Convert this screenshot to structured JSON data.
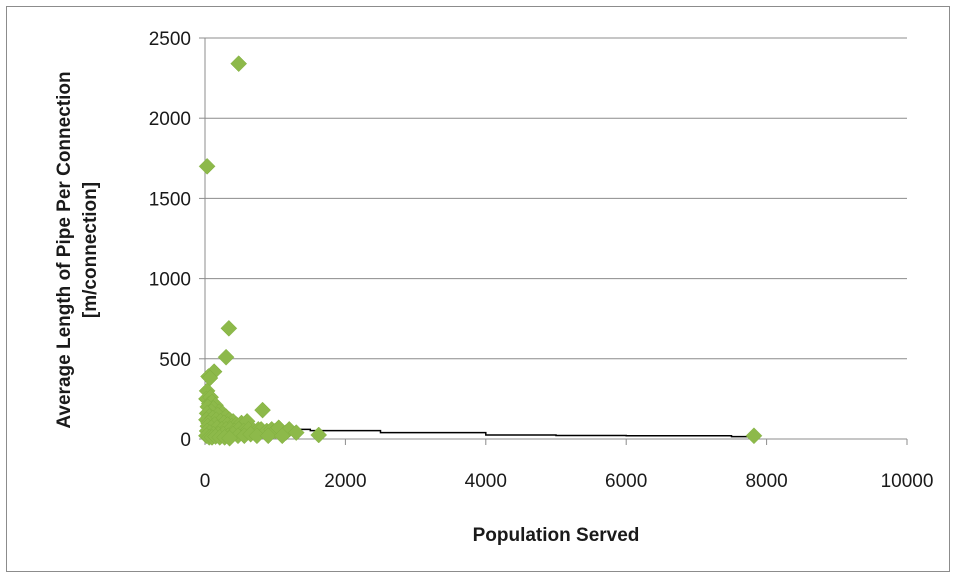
{
  "chart_data": {
    "type": "scatter",
    "title": "",
    "xlabel": "Population Served",
    "ylabel_lines": [
      "Average Length of Pipe Per Connection",
      "[m/connection]"
    ],
    "xlim": [
      0,
      10000
    ],
    "ylim": [
      0,
      2500
    ],
    "x_ticks": [
      0,
      2000,
      4000,
      6000,
      8000,
      10000
    ],
    "y_ticks": [
      0,
      500,
      1000,
      1500,
      2000,
      2500
    ],
    "grid": "horizontal",
    "legend": "none",
    "marker_color": "#8db94a",
    "trend_color": "#000000",
    "series": [
      {
        "points": [
          [
            480,
            2340
          ],
          [
            30,
            1700
          ],
          [
            340,
            690
          ],
          [
            300,
            510
          ],
          [
            130,
            420
          ],
          [
            50,
            390
          ],
          [
            70,
            380
          ],
          [
            30,
            300
          ],
          [
            20,
            250
          ],
          [
            80,
            260
          ],
          [
            60,
            220
          ],
          [
            100,
            230
          ],
          [
            150,
            210
          ],
          [
            40,
            200
          ],
          [
            120,
            190
          ],
          [
            200,
            170
          ],
          [
            250,
            160
          ],
          [
            90,
            170
          ],
          [
            30,
            160
          ],
          [
            180,
            150
          ],
          [
            60,
            140
          ],
          [
            300,
            140
          ],
          [
            350,
            120
          ],
          [
            400,
            110
          ],
          [
            20,
            120
          ],
          [
            110,
            130
          ],
          [
            160,
            120
          ],
          [
            220,
            110
          ],
          [
            270,
            100
          ],
          [
            50,
            100
          ],
          [
            140,
            90
          ],
          [
            320,
            90
          ],
          [
            380,
            80
          ],
          [
            450,
            90
          ],
          [
            520,
            100
          ],
          [
            600,
            110
          ],
          [
            40,
            80
          ],
          [
            90,
            70
          ],
          [
            170,
            70
          ],
          [
            240,
            60
          ],
          [
            300,
            60
          ],
          [
            360,
            60
          ],
          [
            420,
            50
          ],
          [
            480,
            60
          ],
          [
            550,
            50
          ],
          [
            620,
            60
          ],
          [
            700,
            50
          ],
          [
            760,
            60
          ],
          [
            820,
            180
          ],
          [
            800,
            60
          ],
          [
            880,
            50
          ],
          [
            950,
            60
          ],
          [
            1000,
            50
          ],
          [
            1050,
            70
          ],
          [
            1150,
            40
          ],
          [
            1200,
            60
          ],
          [
            1300,
            40
          ],
          [
            1620,
            25
          ],
          [
            30,
            50
          ],
          [
            70,
            40
          ],
          [
            120,
            30
          ],
          [
            190,
            30
          ],
          [
            260,
            30
          ],
          [
            330,
            20
          ],
          [
            400,
            30
          ],
          [
            470,
            20
          ],
          [
            560,
            20
          ],
          [
            650,
            30
          ],
          [
            740,
            20
          ],
          [
            900,
            20
          ],
          [
            1100,
            20
          ],
          [
            20,
            20
          ],
          [
            60,
            10
          ],
          [
            100,
            10
          ],
          [
            150,
            15
          ],
          [
            210,
            10
          ],
          [
            280,
            10
          ],
          [
            350,
            5
          ],
          [
            7820,
            20
          ]
        ]
      }
    ],
    "trend_line": [
      [
        0,
        85
      ],
      [
        150,
        80
      ],
      [
        300,
        75
      ],
      [
        700,
        68
      ],
      [
        1000,
        60
      ],
      [
        1500,
        52
      ],
      [
        2500,
        40
      ],
      [
        4000,
        25
      ],
      [
        5000,
        22
      ],
      [
        6000,
        20
      ],
      [
        7500,
        15
      ],
      [
        7800,
        14
      ]
    ]
  }
}
